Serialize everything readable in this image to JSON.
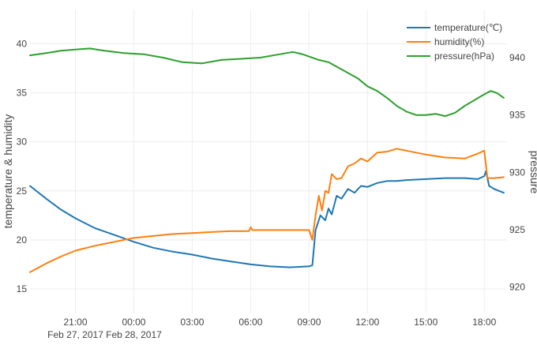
{
  "chart_data": {
    "type": "line",
    "title": "",
    "xlabel": "",
    "y_left_label": "temperature & humidity",
    "y_right_label": "pressure",
    "x_range": [
      "2017-02-27 18:40",
      "2017-02-28 19:10"
    ],
    "y_left_range": [
      12.5,
      43.5
    ],
    "y_right_range": [
      917.7,
      944.2
    ],
    "x_ticks": [
      {
        "value": "2017-02-27 21:00",
        "label": "21:00",
        "sublabel": "Feb 27, 2017"
      },
      {
        "value": "2017-02-28 00:00",
        "label": "00:00",
        "sublabel": "Feb 28, 2017"
      },
      {
        "value": "2017-02-28 03:00",
        "label": "03:00",
        "sublabel": ""
      },
      {
        "value": "2017-02-28 06:00",
        "label": "06:00",
        "sublabel": ""
      },
      {
        "value": "2017-02-28 09:00",
        "label": "09:00",
        "sublabel": ""
      },
      {
        "value": "2017-02-28 12:00",
        "label": "12:00",
        "sublabel": ""
      },
      {
        "value": "2017-02-28 15:00",
        "label": "15:00",
        "sublabel": ""
      },
      {
        "value": "2017-02-28 18:00",
        "label": "18:00",
        "sublabel": ""
      }
    ],
    "y_left_ticks": [
      15,
      20,
      25,
      30,
      35,
      40
    ],
    "y_right_ticks": [
      920,
      925,
      930,
      935,
      940
    ],
    "grid": true,
    "legend_position": "top-right",
    "series": [
      {
        "name": "temperature(℃)",
        "axis": "left",
        "color": "#1f77b4",
        "points": [
          [
            "2017-02-27 18:40",
            25.5
          ],
          [
            "2017-02-27 19:30",
            24.2
          ],
          [
            "2017-02-27 20:15",
            23.1
          ],
          [
            "2017-02-27 21:00",
            22.2
          ],
          [
            "2017-02-27 22:00",
            21.2
          ],
          [
            "2017-02-27 23:00",
            20.5
          ],
          [
            "2017-02-28 00:00",
            19.8
          ],
          [
            "2017-02-28 01:00",
            19.2
          ],
          [
            "2017-02-28 02:00",
            18.8
          ],
          [
            "2017-02-28 03:00",
            18.5
          ],
          [
            "2017-02-28 04:00",
            18.1
          ],
          [
            "2017-02-28 05:00",
            17.8
          ],
          [
            "2017-02-28 06:00",
            17.5
          ],
          [
            "2017-02-28 07:00",
            17.3
          ],
          [
            "2017-02-28 08:00",
            17.2
          ],
          [
            "2017-02-28 09:00",
            17.3
          ],
          [
            "2017-02-28 09:10",
            17.4
          ],
          [
            "2017-02-28 09:20",
            21.0
          ],
          [
            "2017-02-28 09:35",
            22.5
          ],
          [
            "2017-02-28 09:50",
            22.0
          ],
          [
            "2017-02-28 10:00",
            23.2
          ],
          [
            "2017-02-28 10:10",
            22.6
          ],
          [
            "2017-02-28 10:25",
            24.5
          ],
          [
            "2017-02-28 10:40",
            24.2
          ],
          [
            "2017-02-28 11:00",
            25.2
          ],
          [
            "2017-02-28 11:20",
            24.8
          ],
          [
            "2017-02-28 11:40",
            25.5
          ],
          [
            "2017-02-28 12:00",
            25.4
          ],
          [
            "2017-02-28 12:30",
            25.8
          ],
          [
            "2017-02-28 13:00",
            26.0
          ],
          [
            "2017-02-28 13:30",
            26.0
          ],
          [
            "2017-02-28 14:00",
            26.1
          ],
          [
            "2017-02-28 15:00",
            26.2
          ],
          [
            "2017-02-28 16:00",
            26.3
          ],
          [
            "2017-02-28 17:00",
            26.3
          ],
          [
            "2017-02-28 17:40",
            26.2
          ],
          [
            "2017-02-28 18:00",
            26.5
          ],
          [
            "2017-02-28 18:05",
            27.0
          ],
          [
            "2017-02-28 18:15",
            25.5
          ],
          [
            "2017-02-28 18:30",
            25.2
          ],
          [
            "2017-02-28 19:00",
            24.8
          ]
        ]
      },
      {
        "name": "humidity(%)",
        "axis": "left",
        "color": "#ff7f0e",
        "points": [
          [
            "2017-02-27 18:40",
            16.7
          ],
          [
            "2017-02-27 19:30",
            17.6
          ],
          [
            "2017-02-27 20:15",
            18.3
          ],
          [
            "2017-02-27 21:00",
            18.9
          ],
          [
            "2017-02-27 22:00",
            19.4
          ],
          [
            "2017-02-27 23:00",
            19.8
          ],
          [
            "2017-02-28 00:00",
            20.2
          ],
          [
            "2017-02-28 01:00",
            20.4
          ],
          [
            "2017-02-28 02:00",
            20.6
          ],
          [
            "2017-02-28 03:00",
            20.7
          ],
          [
            "2017-02-28 04:00",
            20.8
          ],
          [
            "2017-02-28 05:00",
            20.9
          ],
          [
            "2017-02-28 05:55",
            20.9
          ],
          [
            "2017-02-28 06:00",
            21.3
          ],
          [
            "2017-02-28 06:05",
            21.0
          ],
          [
            "2017-02-28 07:00",
            21.0
          ],
          [
            "2017-02-28 08:00",
            21.0
          ],
          [
            "2017-02-28 09:00",
            21.0
          ],
          [
            "2017-02-28 09:10",
            20.0
          ],
          [
            "2017-02-28 09:20",
            22.5
          ],
          [
            "2017-02-28 09:30",
            24.5
          ],
          [
            "2017-02-28 09:40",
            23.0
          ],
          [
            "2017-02-28 09:50",
            25.0
          ],
          [
            "2017-02-28 10:00",
            24.8
          ],
          [
            "2017-02-28 10:10",
            26.7
          ],
          [
            "2017-02-28 10:25",
            26.2
          ],
          [
            "2017-02-28 10:40",
            26.3
          ],
          [
            "2017-02-28 11:00",
            27.5
          ],
          [
            "2017-02-28 11:20",
            27.8
          ],
          [
            "2017-02-28 11:40",
            28.3
          ],
          [
            "2017-02-28 12:00",
            28.0
          ],
          [
            "2017-02-28 12:30",
            28.9
          ],
          [
            "2017-02-28 13:00",
            29.0
          ],
          [
            "2017-02-28 13:30",
            29.3
          ],
          [
            "2017-02-28 14:00",
            29.1
          ],
          [
            "2017-02-28 15:00",
            28.7
          ],
          [
            "2017-02-28 16:00",
            28.4
          ],
          [
            "2017-02-28 17:00",
            28.3
          ],
          [
            "2017-02-28 17:40",
            28.8
          ],
          [
            "2017-02-28 18:00",
            29.1
          ],
          [
            "2017-02-28 18:10",
            26.3
          ],
          [
            "2017-02-28 18:30",
            26.3
          ],
          [
            "2017-02-28 19:00",
            26.4
          ]
        ]
      },
      {
        "name": "pressure(hPa)",
        "axis": "right",
        "color": "#2ca02c",
        "points": [
          [
            "2017-02-27 18:40",
            940.2
          ],
          [
            "2017-02-27 19:30",
            940.4
          ],
          [
            "2017-02-27 20:15",
            940.6
          ],
          [
            "2017-02-27 21:00",
            940.7
          ],
          [
            "2017-02-27 21:45",
            940.8
          ],
          [
            "2017-02-27 22:30",
            940.6
          ],
          [
            "2017-02-27 23:30",
            940.4
          ],
          [
            "2017-02-28 00:30",
            940.3
          ],
          [
            "2017-02-28 01:30",
            940.0
          ],
          [
            "2017-02-28 02:30",
            939.6
          ],
          [
            "2017-02-28 03:30",
            939.5
          ],
          [
            "2017-02-28 04:30",
            939.8
          ],
          [
            "2017-02-28 05:30",
            939.9
          ],
          [
            "2017-02-28 06:30",
            940.0
          ],
          [
            "2017-02-28 07:30",
            940.3
          ],
          [
            "2017-02-28 08:10",
            940.5
          ],
          [
            "2017-02-28 08:40",
            940.3
          ],
          [
            "2017-02-28 09:30",
            939.8
          ],
          [
            "2017-02-28 10:00",
            939.6
          ],
          [
            "2017-02-28 10:45",
            938.9
          ],
          [
            "2017-02-28 11:30",
            938.2
          ],
          [
            "2017-02-28 12:00",
            937.5
          ],
          [
            "2017-02-28 12:30",
            937.1
          ],
          [
            "2017-02-28 13:00",
            936.5
          ],
          [
            "2017-02-28 13:30",
            935.8
          ],
          [
            "2017-02-28 14:00",
            935.3
          ],
          [
            "2017-02-28 14:30",
            935.0
          ],
          [
            "2017-02-28 15:00",
            935.0
          ],
          [
            "2017-02-28 15:30",
            935.1
          ],
          [
            "2017-02-28 16:00",
            934.9
          ],
          [
            "2017-02-28 16:30",
            935.2
          ],
          [
            "2017-02-28 17:00",
            935.8
          ],
          [
            "2017-02-28 17:30",
            936.3
          ],
          [
            "2017-02-28 18:00",
            936.8
          ],
          [
            "2017-02-28 18:20",
            937.1
          ],
          [
            "2017-02-28 18:40",
            936.9
          ],
          [
            "2017-02-28 19:00",
            936.5
          ]
        ]
      }
    ]
  }
}
